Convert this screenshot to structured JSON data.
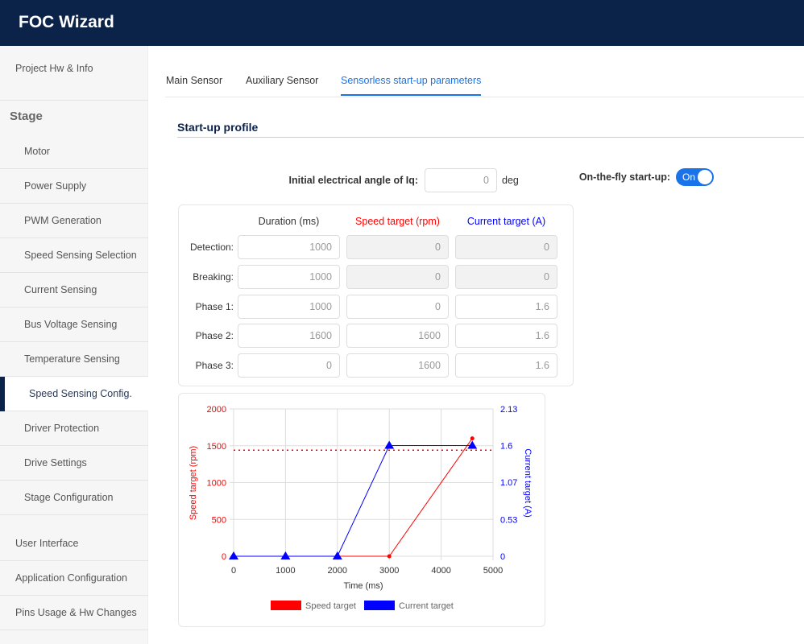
{
  "header": {
    "title": "FOC Wizard"
  },
  "sidebar": {
    "project": "Project Hw & Info",
    "stage_label": "Stage",
    "stage_items": [
      "Motor",
      "Power Supply",
      "PWM Generation",
      "Speed Sensing Selection",
      "Current Sensing",
      "Bus Voltage Sensing",
      "Temperature Sensing",
      "Speed Sensing Config.",
      "Driver Protection",
      "Drive Settings",
      "Stage Configuration"
    ],
    "selected_index": 7,
    "bottom_items": [
      "User Interface",
      "Application Configuration",
      "Pins Usage & Hw Changes"
    ]
  },
  "tabs": [
    "Main Sensor",
    "Auxiliary Sensor",
    "Sensorless start-up parameters"
  ],
  "section_title": "Start-up profile",
  "angle": {
    "label": "Initial electrical angle of Iq:",
    "value": "0",
    "unit": "deg"
  },
  "onthefly": {
    "label": "On-the-fly start-up:",
    "state": "On"
  },
  "table": {
    "headers": [
      "Duration (ms)",
      "Speed target (rpm)",
      "Current target (A)"
    ],
    "header_colors": [
      "#333333",
      "#ff0000",
      "#0000ff"
    ],
    "rows": [
      {
        "label": "Detection:",
        "values": [
          "1000",
          "0",
          "0"
        ],
        "disabled": [
          false,
          true,
          true
        ]
      },
      {
        "label": "Breaking:",
        "values": [
          "1000",
          "0",
          "0"
        ],
        "disabled": [
          false,
          true,
          true
        ]
      },
      {
        "label": "Phase 1:",
        "values": [
          "1000",
          "0",
          "1.6"
        ],
        "disabled": [
          false,
          false,
          false
        ]
      },
      {
        "label": "Phase 2:",
        "values": [
          "1600",
          "1600",
          "1.6"
        ],
        "disabled": [
          false,
          false,
          false
        ]
      },
      {
        "label": "Phase 3:",
        "values": [
          "0",
          "1600",
          "1.6"
        ],
        "disabled": [
          false,
          false,
          false
        ]
      }
    ]
  },
  "chart_data": {
    "type": "line",
    "xlabel": "Time (ms)",
    "ylabel": "Speed target (rpm)",
    "y2label": "Current target (A)",
    "xlim": [
      0,
      5000
    ],
    "ylim": [
      0,
      2000
    ],
    "y2lim": [
      0,
      2.13
    ],
    "xticks": [
      "0",
      "1000",
      "2000",
      "3000",
      "4000",
      "5000"
    ],
    "yticks": [
      "0",
      "500",
      "1000",
      "1500",
      "2000"
    ],
    "y2ticks": [
      "0",
      "0.53",
      "1.07",
      "1.6",
      "2.13"
    ],
    "threshold_rpm": 1440,
    "series": [
      {
        "name": "Speed target",
        "color": "#ff0000",
        "axis": "left",
        "x": [
          0,
          1000,
          2000,
          3000,
          4600
        ],
        "y": [
          0,
          0,
          0,
          0,
          1600
        ]
      },
      {
        "name": "Current target",
        "color": "#0000ff",
        "axis": "right",
        "x": [
          0,
          1000,
          2000,
          3000,
          4600
        ],
        "y": [
          0,
          0,
          0,
          1.6,
          1.6
        ]
      }
    ],
    "legend": "bottom"
  }
}
